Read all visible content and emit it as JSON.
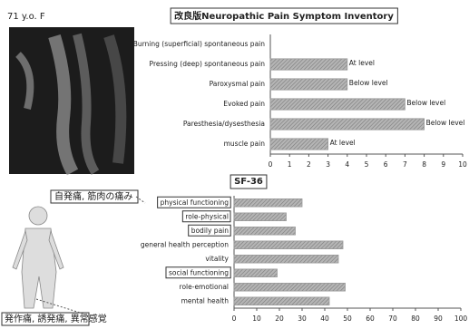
{
  "patient": "71 y.o. F",
  "labels": {
    "upper": "自発痛, 筋肉の痛み",
    "lower": "発作痛, 誘発痛, 異常感覚"
  },
  "chart_data": [
    {
      "type": "bar",
      "orientation": "horizontal",
      "title": "改良版Neuropathic Pain Symptom Inventory",
      "categories": [
        "Burning (superficial) spontaneous pain",
        "Pressing (deep) spontaneous pain",
        "Paroxysmal pain",
        "Evoked pain",
        "Paresthesia/dysesthesia",
        "muscle pain"
      ],
      "values": [
        0,
        4,
        4,
        7,
        8,
        3
      ],
      "annotations": [
        null,
        "At level",
        "Below level",
        "Below level",
        "Below level",
        "At level"
      ],
      "color": "#9a9a9a",
      "xlim": [
        0,
        10
      ],
      "xticks": [
        0,
        1,
        2,
        3,
        4,
        5,
        6,
        7,
        8,
        9,
        10
      ]
    },
    {
      "type": "bar",
      "orientation": "horizontal",
      "title": "SF-36",
      "categories": [
        "physical functioning",
        "role-physical",
        "bodily pain",
        "general health perception",
        "vitality",
        "social functioning",
        "role-emotional",
        "mental health"
      ],
      "values": [
        30,
        23,
        27,
        48,
        46,
        19,
        49,
        42
      ],
      "color": "#9a9a9a",
      "xlim": [
        0,
        100
      ],
      "xticks": [
        0,
        10,
        20,
        30,
        40,
        50,
        60,
        70,
        80,
        90,
        100
      ]
    }
  ]
}
